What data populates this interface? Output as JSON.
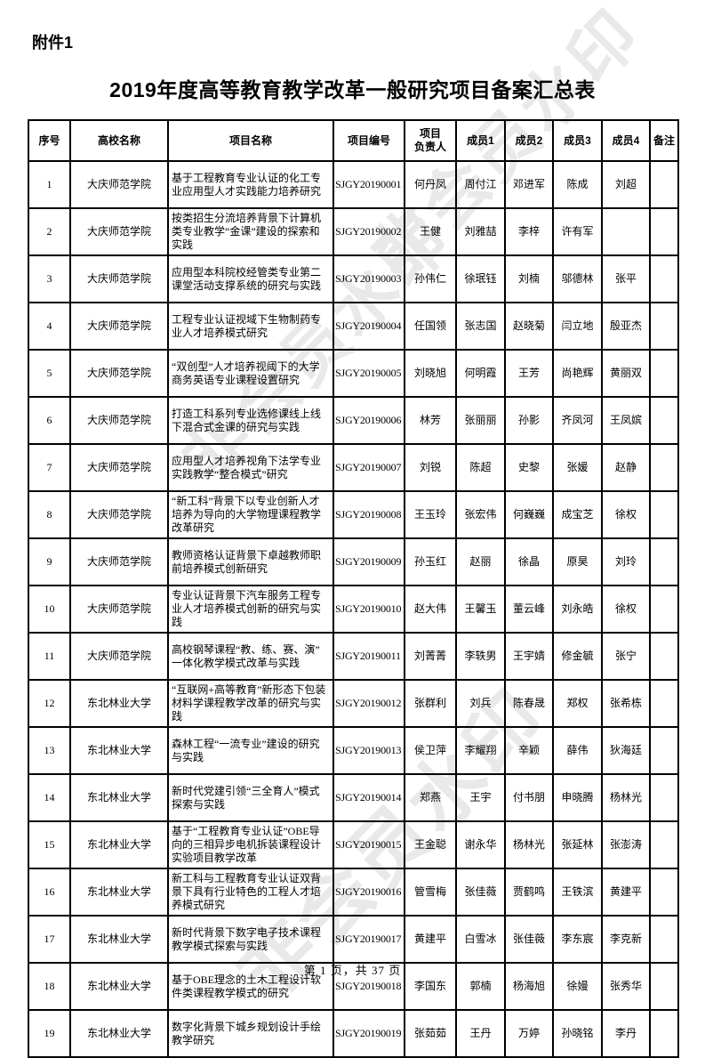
{
  "page": {
    "attachment_label": "附件1",
    "title": "2019年度高等教育教学改革一般研究项目备案汇总表",
    "footer": "第 1 页，共 37 页",
    "watermark_text": "非会员水印"
  },
  "table": {
    "headers": [
      "序号",
      "高校名称",
      "项目名称",
      "项目编号",
      "项目\n负责人",
      "成员1",
      "成员2",
      "成员3",
      "成员4",
      "备注"
    ],
    "rows": [
      [
        "1",
        "大庆师范学院",
        "基于工程教育专业认证的化工专业应用型人才实践能力培养研究",
        "SJGY20190001",
        "何丹凤",
        "周付江",
        "邓进军",
        "陈成",
        "刘超",
        ""
      ],
      [
        "2",
        "大庆师范学院",
        "按类招生分流培养背景下计算机类专业教学“金课”建设的探索和实践",
        "SJGY20190002",
        "王健",
        "刘雅喆",
        "李梓",
        "许有军",
        "",
        ""
      ],
      [
        "3",
        "大庆师范学院",
        "应用型本科院校经管类专业第二课堂活动支撑系统的研究与实践",
        "SJGY20190003",
        "孙伟仁",
        "徐珉钰",
        "刘楠",
        "邬德林",
        "张平",
        ""
      ],
      [
        "4",
        "大庆师范学院",
        "工程专业认证视域下生物制药专业人才培养模式研究",
        "SJGY20190004",
        "任国领",
        "张志国",
        "赵晓菊",
        "闫立地",
        "殷亚杰",
        ""
      ],
      [
        "5",
        "大庆师范学院",
        "“双创型”人才培养视阈下的大学商务英语专业课程设置研究",
        "SJGY20190005",
        "刘晓旭",
        "何明霞",
        "王芳",
        "尚艳辉",
        "黄丽双",
        ""
      ],
      [
        "6",
        "大庆师范学院",
        "打造工科系列专业选修课线上线下混合式金课的研究与实践",
        "SJGY20190006",
        "林芳",
        "张丽丽",
        "孙影",
        "齐凤河",
        "王凤嫔",
        ""
      ],
      [
        "7",
        "大庆师范学院",
        "应用型人才培养视角下法学专业实践教学“整合模式”研究",
        "SJGY20190007",
        "刘锐",
        "陈超",
        "史黎",
        "张媛",
        "赵静",
        ""
      ],
      [
        "8",
        "大庆师范学院",
        "“新工科”背景下以专业创新人才培养为导向的大学物理课程教学改革研究",
        "SJGY20190008",
        "王玉玲",
        "张宏伟",
        "何巍巍",
        "成宝芝",
        "徐权",
        ""
      ],
      [
        "9",
        "大庆师范学院",
        "教师资格认证背景下卓越教师职前培养模式创新研究",
        "SJGY20190009",
        "孙玉红",
        "赵丽",
        "徐晶",
        "原昊",
        "刘玲",
        ""
      ],
      [
        "10",
        "大庆师范学院",
        "专业认证背景下汽车服务工程专业人才培养模式创新的研究与实践",
        "SJGY20190010",
        "赵大伟",
        "王馨玉",
        "董云峰",
        "刘永皓",
        "徐权",
        ""
      ],
      [
        "11",
        "大庆师范学院",
        "高校钢琴课程“教、练、赛、演”一体化教学模式改革与实践",
        "SJGY20190011",
        "刘菁菁",
        "李轶男",
        "王宇婧",
        "修金毓",
        "张宁",
        ""
      ],
      [
        "12",
        "东北林业大学",
        "“互联网+高等教育”新形态下包装材料学课程教学改革的研究与实践",
        "SJGY20190012",
        "张群利",
        "刘兵",
        "陈春晟",
        "郑权",
        "张希栋",
        ""
      ],
      [
        "13",
        "东北林业大学",
        "森林工程“一流专业”建设的研究与实践",
        "SJGY20190013",
        "侯卫萍",
        "李耀翔",
        "辛颖",
        "薛伟",
        "狄海廷",
        ""
      ],
      [
        "14",
        "东北林业大学",
        "新时代党建引领“三全育人”模式探索与实践",
        "SJGY20190014",
        "郑燕",
        "王宇",
        "付书朋",
        "申晓腾",
        "杨林光",
        ""
      ],
      [
        "15",
        "东北林业大学",
        "基于“工程教育专业认证”OBE导向的三相异步电机拆装课程设计实验项目教学改革",
        "SJGY20190015",
        "王金聪",
        "谢永华",
        "杨林光",
        "张延林",
        "张澎涛",
        ""
      ],
      [
        "16",
        "东北林业大学",
        "新工科与工程教育专业认证双背景下具有行业特色的工程人才培养模式研究",
        "SJGY20190016",
        "管雪梅",
        "张佳薇",
        "贾鹤鸣",
        "王铁滨",
        "黄建平",
        ""
      ],
      [
        "17",
        "东北林业大学",
        "新时代背景下数字电子技术课程教学模式探索与实践",
        "SJGY20190017",
        "黄建平",
        "白雪冰",
        "张佳薇",
        "李东宸",
        "李克新",
        ""
      ],
      [
        "18",
        "东北林业大学",
        "基于OBE理念的土木工程设计软件类课程教学模式的研究",
        "SJGY20190018",
        "李国东",
        "郭楠",
        "杨海旭",
        "徐嫚",
        "张秀华",
        ""
      ],
      [
        "19",
        "东北林业大学",
        "数字化背景下城乡规划设计手绘教学研究",
        "SJGY20190019",
        "张茹茹",
        "王丹",
        "万婷",
        "孙晓铭",
        "李丹",
        ""
      ]
    ]
  }
}
